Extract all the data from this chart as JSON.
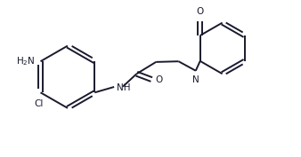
{
  "bg_color": "#ffffff",
  "bond_color": "#1a1a2e",
  "figsize": [
    3.38,
    1.77
  ],
  "dpi": 100,
  "lw": 1.4,
  "fs": 7.5,
  "xlim": [
    0,
    9.5
  ],
  "ylim": [
    0,
    5.0
  ]
}
